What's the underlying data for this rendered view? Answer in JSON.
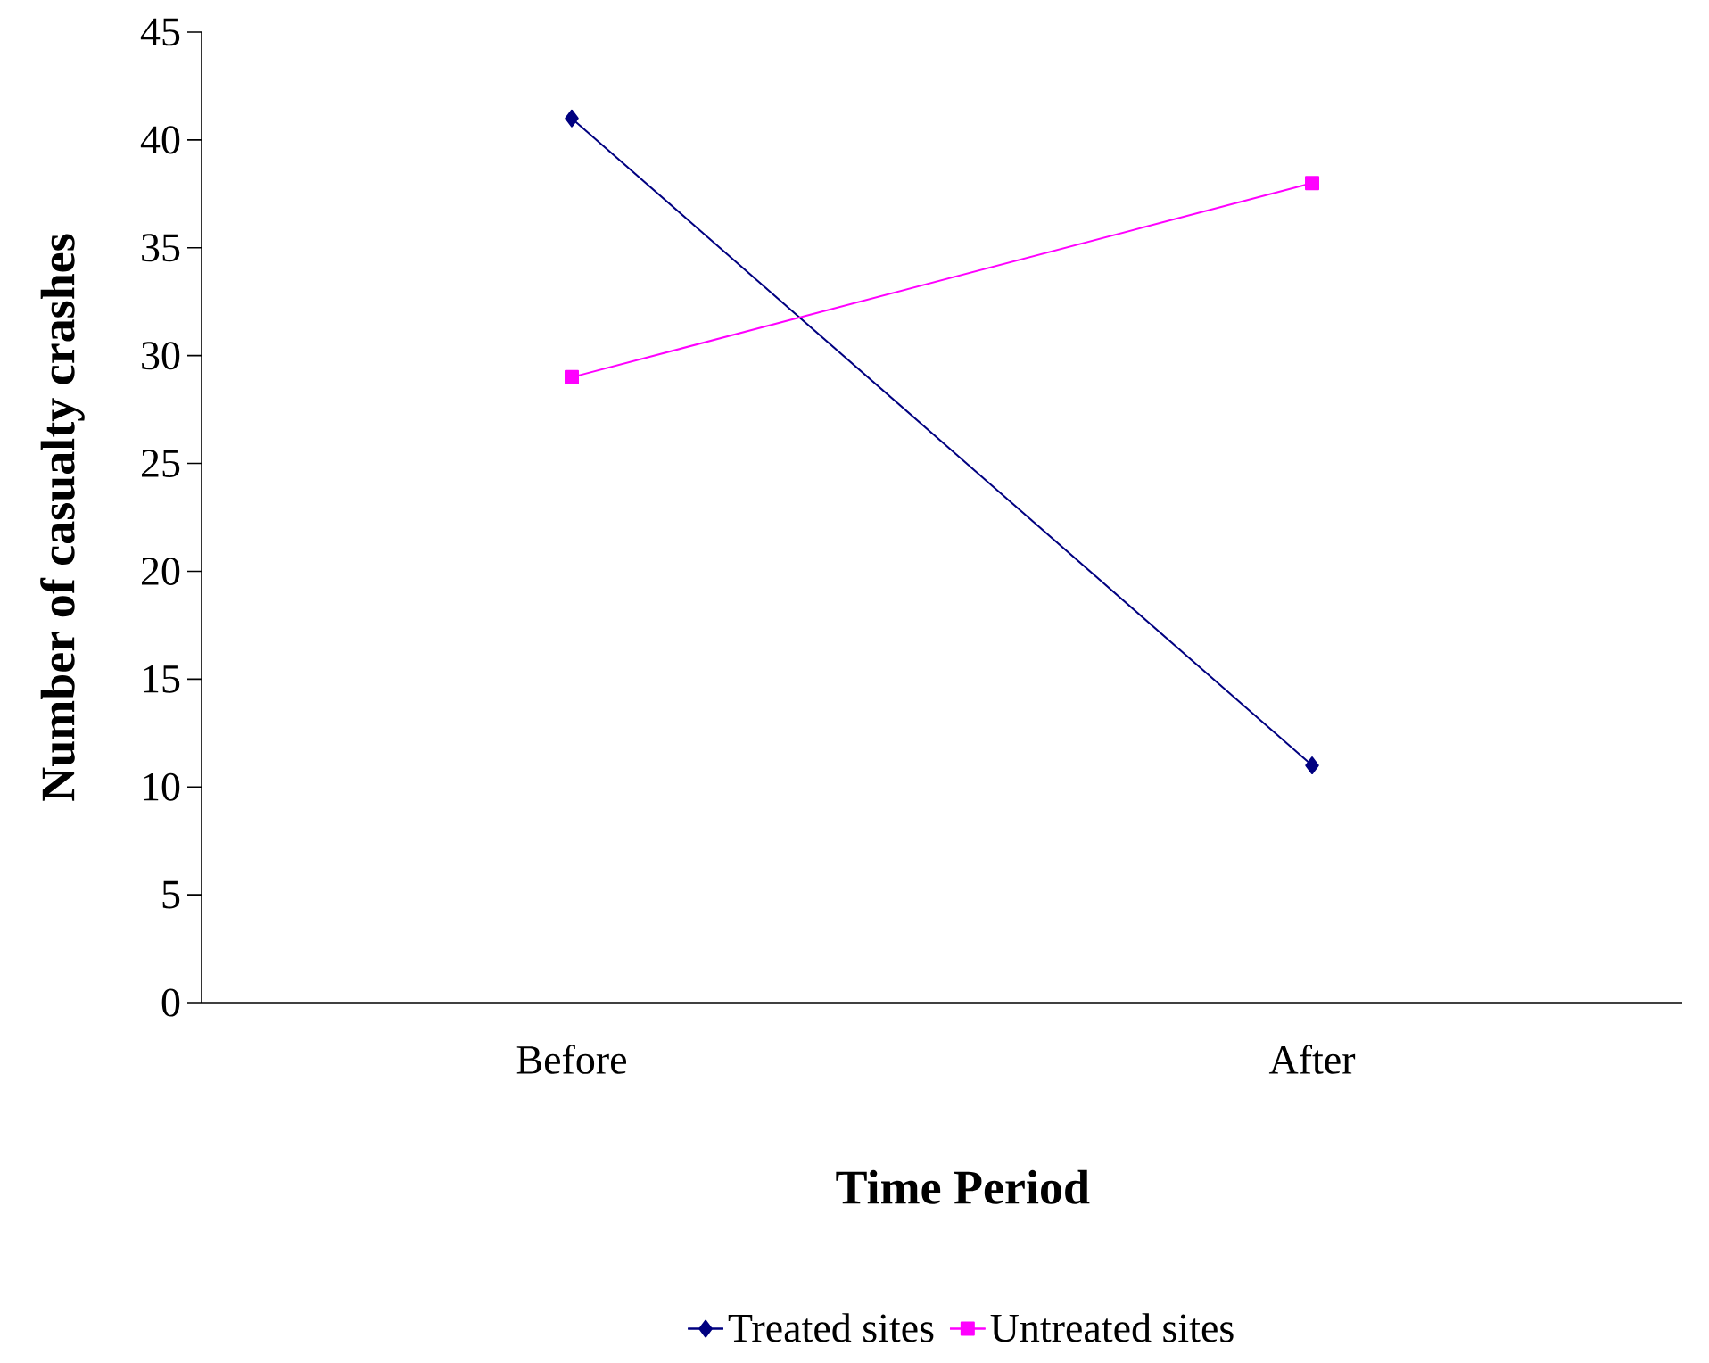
{
  "chart_data": {
    "type": "line",
    "xlabel": "Time Period",
    "ylabel": "Number of casualty crashes",
    "categories": [
      "Before",
      "After"
    ],
    "series": [
      {
        "name": "Treated sites",
        "color": "#000080",
        "marker": "diamond",
        "values": [
          41,
          11
        ]
      },
      {
        "name": "Untreated sites",
        "color": "#ff00ff",
        "marker": "square",
        "values": [
          29,
          38
        ]
      }
    ],
    "ylim": [
      0,
      45
    ],
    "yticks": [
      0,
      5,
      10,
      15,
      20,
      25,
      30,
      35,
      40,
      45
    ],
    "grid": false,
    "legend": "bottom"
  }
}
